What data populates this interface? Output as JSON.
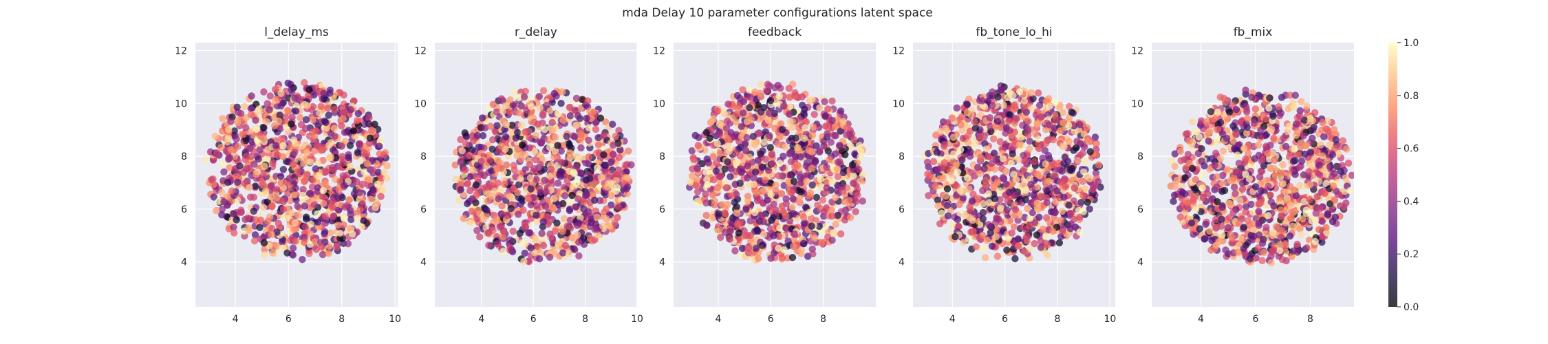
{
  "figure": {
    "title": "mda Delay 10 parameter configurations latent space"
  },
  "chart_data": [
    {
      "type": "scatter",
      "title": "l_delay_ms",
      "xlabel": "",
      "ylabel": "",
      "xlim": [
        2.5,
        10.1
      ],
      "ylim": [
        2.3,
        12.3
      ],
      "xticks": [
        4,
        6,
        8,
        10
      ],
      "yticks": [
        4,
        6,
        8,
        10,
        12
      ],
      "point_cloud": {
        "center": [
          6.35,
          7.45
        ],
        "radius_x": 3.45,
        "radius_y": 3.4,
        "count": 1100
      },
      "seed": 11,
      "color_value_range": [
        0.0,
        1.0
      ],
      "grid": true
    },
    {
      "type": "scatter",
      "title": "r_delay",
      "xlabel": "",
      "ylabel": "",
      "xlim": [
        2.2,
        10.0
      ],
      "ylim": [
        2.3,
        12.3
      ],
      "xticks": [
        4,
        6,
        8,
        10
      ],
      "yticks": [
        4,
        6,
        8,
        10,
        12
      ],
      "point_cloud": {
        "center": [
          6.35,
          7.25
        ],
        "radius_x": 3.45,
        "radius_y": 3.35,
        "count": 1100
      },
      "seed": 23,
      "color_value_range": [
        0.0,
        1.0
      ],
      "grid": true
    },
    {
      "type": "scatter",
      "title": "feedback",
      "xlabel": "",
      "ylabel": "",
      "xlim": [
        2.3,
        10.0
      ],
      "ylim": [
        2.3,
        12.3
      ],
      "xticks": [
        4,
        6,
        8
      ],
      "yticks": [
        4,
        6,
        8,
        10,
        12
      ],
      "point_cloud": {
        "center": [
          6.25,
          7.35
        ],
        "radius_x": 3.45,
        "radius_y": 3.4,
        "count": 1100
      },
      "seed": 37,
      "color_value_range": [
        0.0,
        1.0
      ],
      "grid": true
    },
    {
      "type": "scatter",
      "title": "fb_tone_lo_hi",
      "xlabel": "",
      "ylabel": "",
      "xlim": [
        2.5,
        10.2
      ],
      "ylim": [
        2.3,
        12.3
      ],
      "xticks": [
        4,
        6,
        8,
        10
      ],
      "yticks": [
        4,
        6,
        8,
        10,
        12
      ],
      "point_cloud": {
        "center": [
          6.3,
          7.35
        ],
        "radius_x": 3.45,
        "radius_y": 3.35,
        "count": 1100
      },
      "seed": 41,
      "color_value_range": [
        0.0,
        1.0
      ],
      "grid": true
    },
    {
      "type": "scatter",
      "title": "fb_mix",
      "xlabel": "",
      "ylabel": "",
      "xlim": [
        2.2,
        9.6
      ],
      "ylim": [
        2.3,
        12.3
      ],
      "xticks": [
        4,
        6,
        8
      ],
      "yticks": [
        4,
        6,
        8,
        10,
        12
      ],
      "point_cloud": {
        "center": [
          6.2,
          7.2
        ],
        "radius_x": 3.35,
        "radius_y": 3.35,
        "count": 1100
      },
      "seed": 53,
      "color_value_range": [
        0.0,
        1.0
      ],
      "grid": true
    }
  ],
  "colorbar": {
    "colormap": "magma",
    "range": [
      0.0,
      1.0
    ],
    "ticks": [
      "0.0",
      "0.2",
      "0.4",
      "0.6",
      "0.8",
      "1.0"
    ]
  },
  "style": {
    "axes_bg": "#eaeaf2",
    "grid_color": "#ffffff",
    "text_color": "#262626",
    "point_alpha": 0.72
  }
}
